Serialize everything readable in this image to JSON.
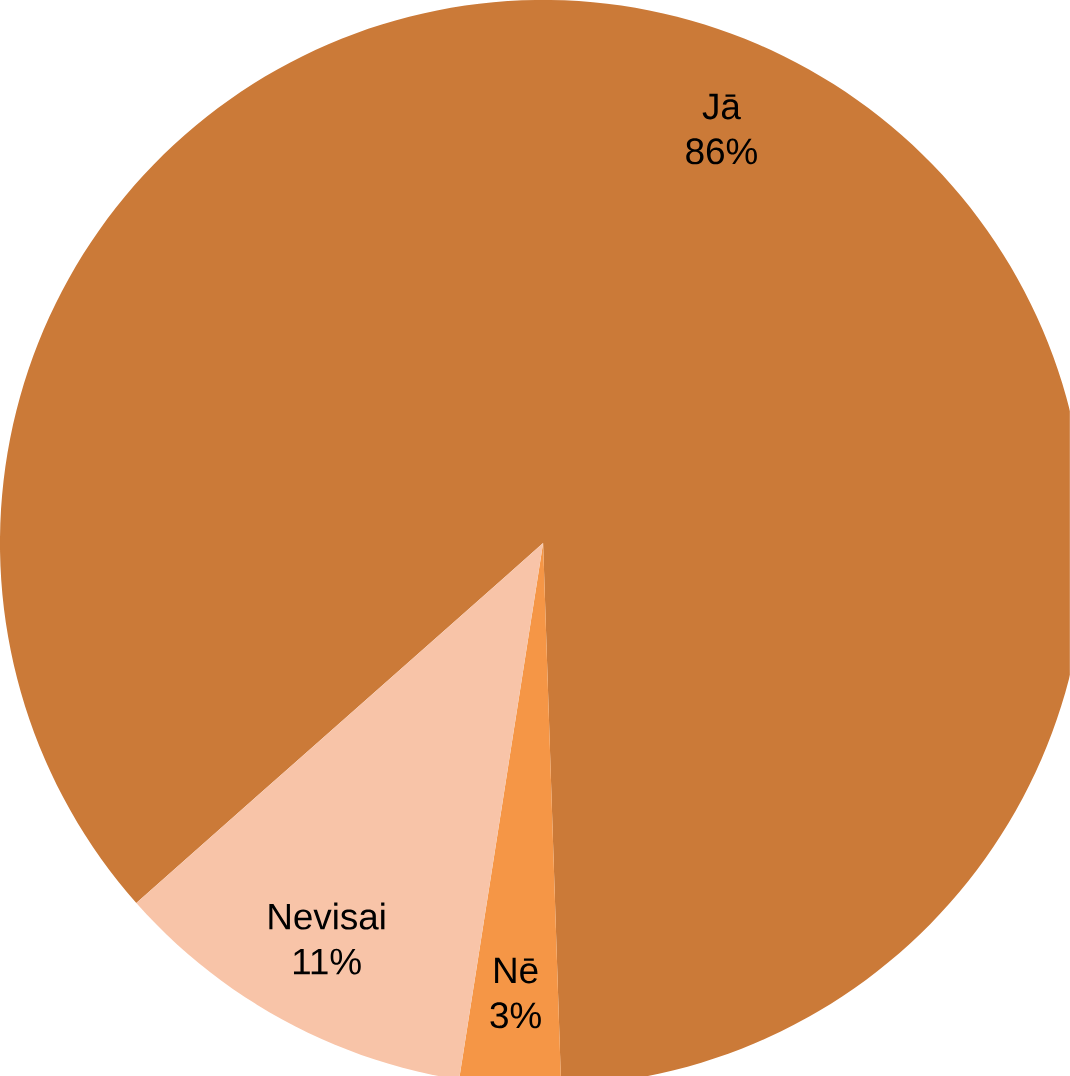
{
  "chart_data": {
    "type": "pie",
    "categories": [
      "Jā",
      "Nē",
      "Nevisai"
    ],
    "values": [
      86,
      3,
      11
    ],
    "value_labels": [
      "86%",
      "3%",
      "11%"
    ],
    "colors": [
      "#cb7a38",
      "#f59646",
      "#f8c4a8"
    ]
  }
}
